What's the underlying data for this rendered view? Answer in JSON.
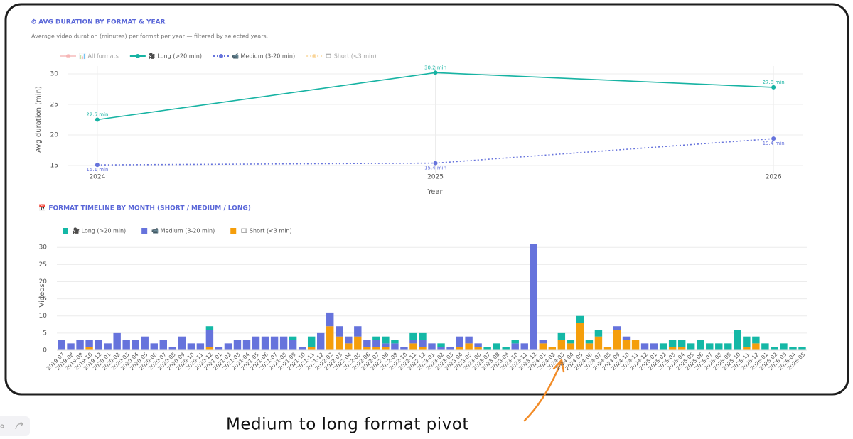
{
  "chart_data": [
    {
      "type": "line",
      "title": "⏱ AVG DURATION BY FORMAT & YEAR",
      "subtitle": "Average video duration (minutes) per format per year — filtered by selected years.",
      "x_label": "Year",
      "y_label": "Avg duration (min)",
      "x": [
        2024,
        2025,
        2026
      ],
      "xlim": [
        2023.914,
        2026.088
      ],
      "xticks": [
        2024,
        2025,
        2026
      ],
      "ylim": [
        13.84,
        31.28
      ],
      "yticks": [
        15,
        20,
        25,
        30
      ],
      "grid": true,
      "series": [
        {
          "name": "📊 All formats",
          "color": "#f4a3a3",
          "visible": false,
          "dash": "solid",
          "values": [
            null,
            null,
            null
          ]
        },
        {
          "name": "🎥 Long (>20 min)",
          "color": "#17b3a3",
          "visible": true,
          "dash": "solid",
          "label_position": "top",
          "values": [
            22.5,
            30.2,
            27.8
          ],
          "value_labels": [
            "22.5 min",
            "30.2 min",
            "27.8 min"
          ]
        },
        {
          "name": "📹 Medium (3-20 min)",
          "color": "#6673dc",
          "visible": true,
          "dash": "dot",
          "label_position": "bottom",
          "values": [
            15.1,
            15.4,
            19.4
          ],
          "value_labels": [
            "15.1 min",
            "15.4 min",
            "19.4 min"
          ]
        },
        {
          "name": "🎞 Short (<3 min)",
          "color": "#f7c97a",
          "visible": false,
          "dash": "dot",
          "values": [
            null,
            null,
            null
          ]
        }
      ]
    },
    {
      "type": "bar",
      "barmode": "stack",
      "title": "📅 FORMAT TIMELINE BY MONTH (SHORT / MEDIUM / LONG)",
      "y_label": "Videos",
      "ylim": [
        0,
        31.7
      ],
      "yticks": [
        0,
        5,
        10,
        15,
        20,
        25,
        30
      ],
      "grid": true,
      "annotation": "Medium to long format pivot",
      "categories": [
        "2019-07",
        "2019-08",
        "2019-09",
        "2019-10",
        "2019-12",
        "2020-01",
        "2020-02",
        "2020-03",
        "2020-04",
        "2020-05",
        "2020-06",
        "2020-07",
        "2020-08",
        "2020-09",
        "2020-10",
        "2020-11",
        "2020-12",
        "2021-01",
        "2021-02",
        "2021-03",
        "2021-04",
        "2021-05",
        "2021-06",
        "2021-07",
        "2021-08",
        "2021-09",
        "2021-10",
        "2021-11",
        "2021-12",
        "2022-02",
        "2022-03",
        "2022-04",
        "2022-05",
        "2022-06",
        "2022-07",
        "2022-08",
        "2022-09",
        "2022-10",
        "2022-11",
        "2022-12",
        "2023-01",
        "2023-02",
        "2023-03",
        "2023-04",
        "2023-05",
        "2023-06",
        "2023-07",
        "2023-08",
        "2023-09",
        "2023-10",
        "2023-11",
        "2023-12",
        "2024-01",
        "2024-02",
        "2024-03",
        "2024-04",
        "2024-05",
        "2024-06",
        "2024-07",
        "2024-08",
        "2024-09",
        "2024-10",
        "2024-11",
        "2024-12",
        "2025-01",
        "2025-02",
        "2025-03",
        "2025-04",
        "2025-05",
        "2025-06",
        "2025-07",
        "2025-08",
        "2025-09",
        "2025-10",
        "2025-11",
        "2025-12",
        "2026-01",
        "2026-02",
        "2026-03",
        "2026-04",
        "2026-05"
      ],
      "series": [
        {
          "name": "🎥 Long (>20 min)",
          "color": "#14b8a6",
          "values": [
            0,
            0,
            0,
            0,
            0,
            0,
            0,
            0,
            0,
            0,
            0,
            0,
            0,
            0,
            0,
            0,
            1,
            0,
            0,
            0,
            0,
            0,
            0,
            0,
            0,
            1,
            0,
            3,
            0,
            0,
            0,
            0,
            0,
            0,
            1,
            2,
            1,
            0,
            2,
            2,
            0,
            1,
            0,
            0,
            0,
            0,
            1,
            2,
            1,
            1,
            0,
            0,
            0,
            0,
            2,
            1,
            2,
            1,
            2,
            0,
            0,
            0,
            0,
            0,
            0,
            2,
            2,
            2,
            2,
            3,
            2,
            2,
            2,
            6,
            3,
            2,
            2,
            1,
            2,
            1,
            1
          ]
        },
        {
          "name": "📹 Medium (3-20 min)",
          "color": "#6673dc",
          "values": [
            3,
            2,
            3,
            2,
            3,
            2,
            5,
            3,
            3,
            4,
            2,
            3,
            1,
            4,
            2,
            2,
            5,
            1,
            2,
            3,
            3,
            4,
            4,
            4,
            4,
            3,
            1,
            0,
            5,
            4,
            3,
            2,
            3,
            2,
            2,
            1,
            2,
            1,
            1,
            2,
            2,
            1,
            1,
            3,
            2,
            1,
            0,
            0,
            0,
            2,
            2,
            31,
            1,
            0,
            0,
            0,
            0,
            0,
            0,
            0,
            1,
            1,
            0,
            2,
            2,
            0,
            0,
            0,
            0,
            0,
            0,
            0,
            0,
            0,
            0,
            0,
            0,
            0,
            0,
            0,
            0
          ]
        },
        {
          "name": "🎞 Short (<3 min)",
          "color": "#f59e0b",
          "values": [
            0,
            0,
            0,
            1,
            0,
            0,
            0,
            0,
            0,
            0,
            0,
            0,
            0,
            0,
            0,
            0,
            1,
            0,
            0,
            0,
            0,
            0,
            0,
            0,
            0,
            0,
            0,
            1,
            0,
            7,
            4,
            2,
            4,
            1,
            1,
            1,
            0,
            0,
            2,
            1,
            0,
            0,
            0,
            1,
            2,
            1,
            0,
            0,
            0,
            0,
            0,
            0,
            2,
            1,
            3,
            2,
            8,
            2,
            4,
            1,
            6,
            3,
            3,
            0,
            0,
            0,
            1,
            1,
            0,
            0,
            0,
            0,
            0,
            0,
            1,
            2,
            0,
            0,
            0,
            0,
            0
          ]
        }
      ]
    }
  ]
}
